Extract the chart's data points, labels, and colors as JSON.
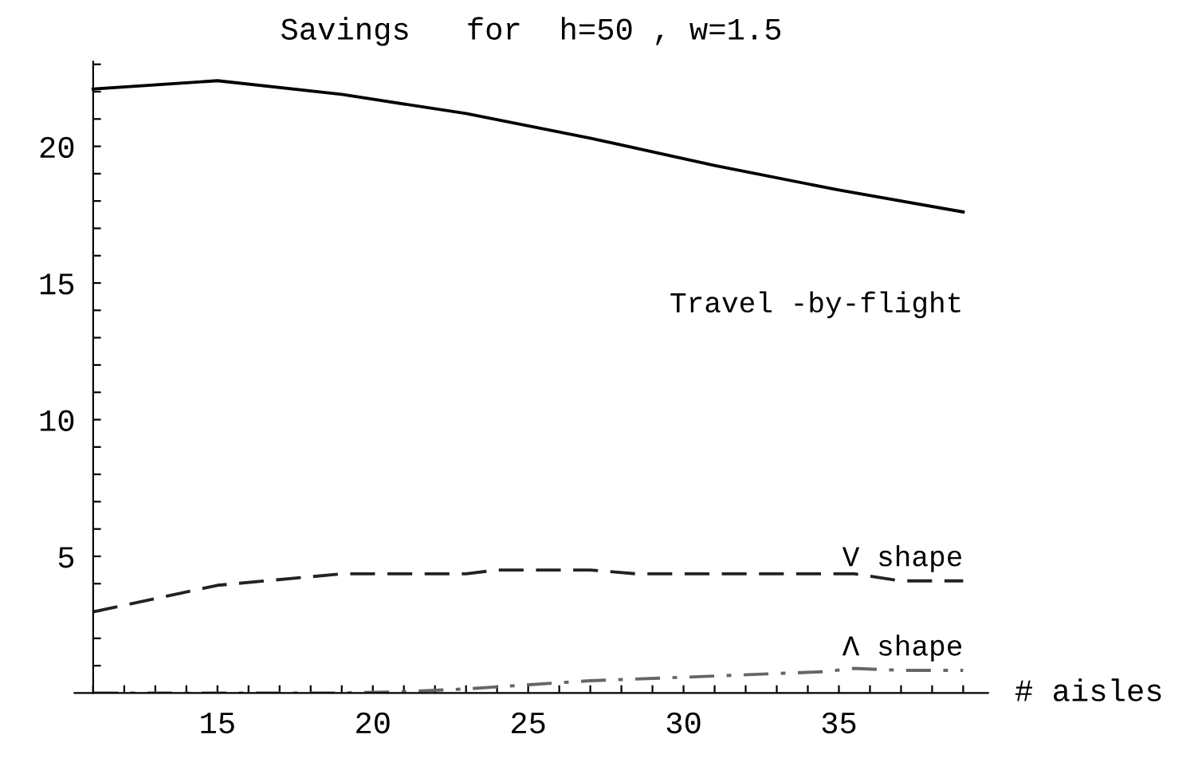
{
  "chart_data": {
    "type": "line",
    "title": "Savings   for  h=50 , w=1.5",
    "xlabel": "# aisles",
    "xlim": [
      10.4,
      39.8
    ],
    "ylim": [
      0,
      23.1
    ],
    "xticks": [
      {
        "value": 11,
        "label": null
      },
      {
        "value": 12,
        "label": null
      },
      {
        "value": 13,
        "label": null
      },
      {
        "value": 14,
        "label": null
      },
      15,
      {
        "value": 16,
        "label": null
      },
      {
        "value": 17,
        "label": null
      },
      {
        "value": 18,
        "label": null
      },
      {
        "value": 19,
        "label": null
      },
      20,
      {
        "value": 21,
        "label": null
      },
      {
        "value": 22,
        "label": null
      },
      {
        "value": 23,
        "label": null
      },
      {
        "value": 24,
        "label": null
      },
      25,
      {
        "value": 26,
        "label": null
      },
      {
        "value": 27,
        "label": null
      },
      {
        "value": 28,
        "label": null
      },
      {
        "value": 29,
        "label": null
      },
      30,
      {
        "value": 31,
        "label": null
      },
      {
        "value": 32,
        "label": null
      },
      {
        "value": 33,
        "label": null
      },
      {
        "value": 34,
        "label": null
      },
      35,
      {
        "value": 36,
        "label": null
      },
      {
        "value": 37,
        "label": null
      },
      {
        "value": 38,
        "label": null
      },
      {
        "value": 39,
        "label": null
      }
    ],
    "yticks": [
      {
        "value": 1,
        "label": null
      },
      {
        "value": 2,
        "label": null
      },
      {
        "value": 3,
        "label": null
      },
      {
        "value": 4,
        "label": null
      },
      5,
      {
        "value": 6,
        "label": null
      },
      {
        "value": 7,
        "label": null
      },
      {
        "value": 8,
        "label": null
      },
      {
        "value": 9,
        "label": null
      },
      10,
      {
        "value": 11,
        "label": null
      },
      {
        "value": 12,
        "label": null
      },
      {
        "value": 13,
        "label": null
      },
      {
        "value": 14,
        "label": null
      },
      15,
      {
        "value": 16,
        "label": null
      },
      {
        "value": 17,
        "label": null
      },
      {
        "value": 18,
        "label": null
      },
      {
        "value": 19,
        "label": null
      },
      20,
      {
        "value": 21,
        "label": null
      },
      {
        "value": 22,
        "label": null
      },
      {
        "value": 23,
        "label": null
      }
    ],
    "grid": false,
    "legend": false,
    "series": [
      {
        "name": "Travel -by-flight",
        "color": "#000000",
        "line_style": "solid",
        "x": [
          11,
          15,
          19,
          23,
          27,
          31,
          35,
          39
        ],
        "values": [
          22.1,
          22.4,
          21.9,
          21.2,
          20.3,
          19.3,
          18.4,
          17.6
        ]
      },
      {
        "name": "V shape",
        "color": "#222222",
        "line_style": "dashed",
        "x": [
          11,
          15,
          19,
          23,
          24,
          27,
          28.5,
          35.5,
          37,
          39
        ],
        "values": [
          2.97,
          3.94,
          4.36,
          4.36,
          4.5,
          4.5,
          4.36,
          4.36,
          4.1,
          4.1
        ]
      },
      {
        "name": "Λ shape",
        "color": "#666666",
        "line_style": "dashdot",
        "x": [
          11,
          19,
          21,
          23,
          27,
          31,
          34.5,
          35.5,
          37,
          39
        ],
        "values": [
          0,
          0,
          0.05,
          0.15,
          0.45,
          0.62,
          0.78,
          0.9,
          0.83,
          0.83
        ]
      }
    ]
  }
}
